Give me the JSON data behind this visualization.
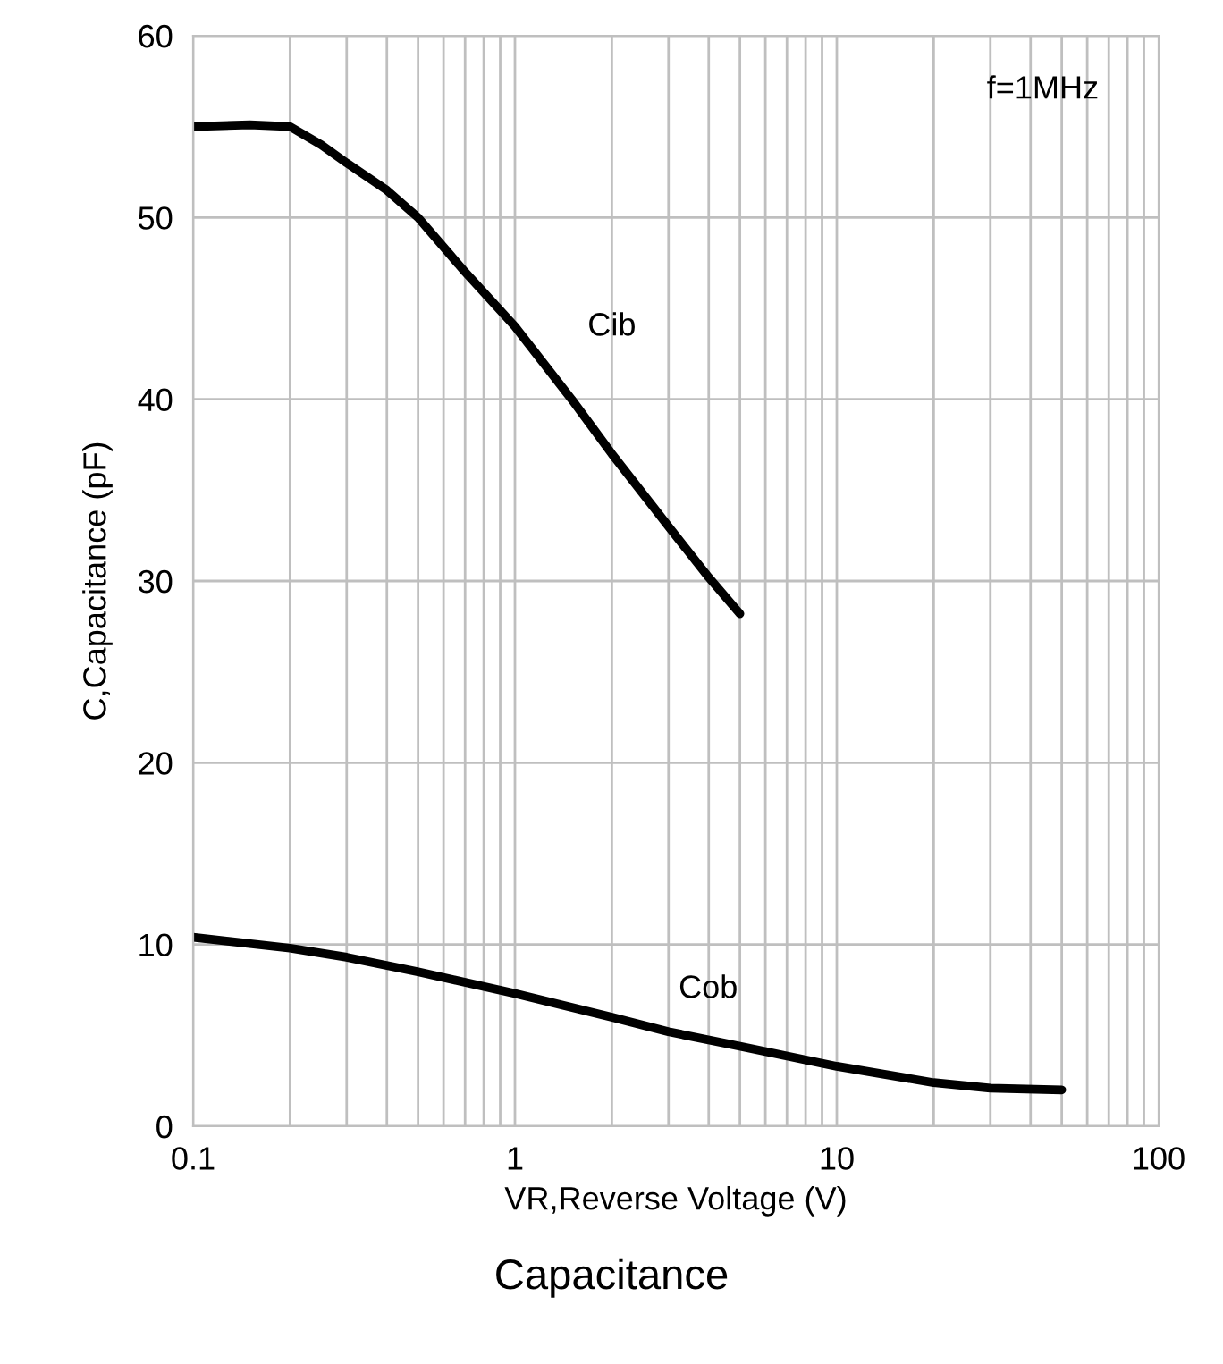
{
  "chart_data": {
    "type": "line",
    "title": "Capacitance",
    "xlabel": "VR,Reverse Voltage (V)",
    "ylabel": "C,Capacitance (pF)",
    "log": "x",
    "xlim": [
      0.1,
      100
    ],
    "xticks": [
      0.1,
      1,
      10,
      100
    ],
    "ylim": [
      0,
      60
    ],
    "yticks": [
      0,
      10,
      20,
      30,
      40,
      50,
      60
    ],
    "grid": true,
    "legend": false,
    "marker": "none",
    "line_style": "solid",
    "series": [
      {
        "name": "Cib",
        "color": "#000000",
        "x": [
          0.1,
          0.15,
          0.2,
          0.25,
          0.3,
          0.4,
          0.5,
          0.7,
          1,
          1.5,
          2,
          3,
          4,
          5
        ],
        "values": [
          55,
          55.1,
          55,
          54,
          53,
          51.5,
          50,
          47,
          44,
          40,
          37,
          33,
          30.2,
          28.2
        ]
      },
      {
        "name": "Cob",
        "color": "#000000",
        "x": [
          0.1,
          0.2,
          0.3,
          0.5,
          1,
          2,
          3,
          5,
          10,
          20,
          30,
          50
        ],
        "values": [
          10.4,
          9.8,
          9.3,
          8.5,
          7.3,
          6,
          5.2,
          4.4,
          3.3,
          2.4,
          2.1,
          2.0
        ]
      }
    ],
    "annotations": [
      "f=1MHz"
    ]
  }
}
